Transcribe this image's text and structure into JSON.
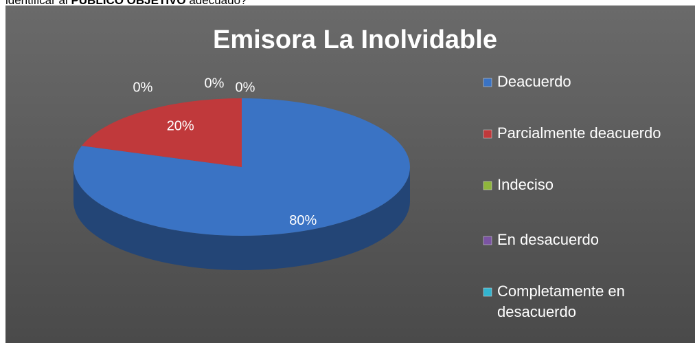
{
  "header": {
    "text": [
      "identificar al ",
      "PÚBLICO OBJETIVO",
      " adecuado?"
    ]
  },
  "chart_data": {
    "type": "pie",
    "title": "Emisora La Inolvidable",
    "categories": [
      "Deacuerdo",
      "Parcialmente deacuerdo",
      "Indeciso",
      "En desacuerdo",
      "Completamente en desacuerdo"
    ],
    "values": [
      80,
      20,
      0,
      0,
      0
    ],
    "value_labels": [
      "80%",
      "20%",
      "0%",
      "0%",
      "0%"
    ],
    "colors": [
      "#3a73c4",
      "#c0393b",
      "#8fb63c",
      "#7b54a3",
      "#33b4cf"
    ],
    "legend": "right"
  }
}
